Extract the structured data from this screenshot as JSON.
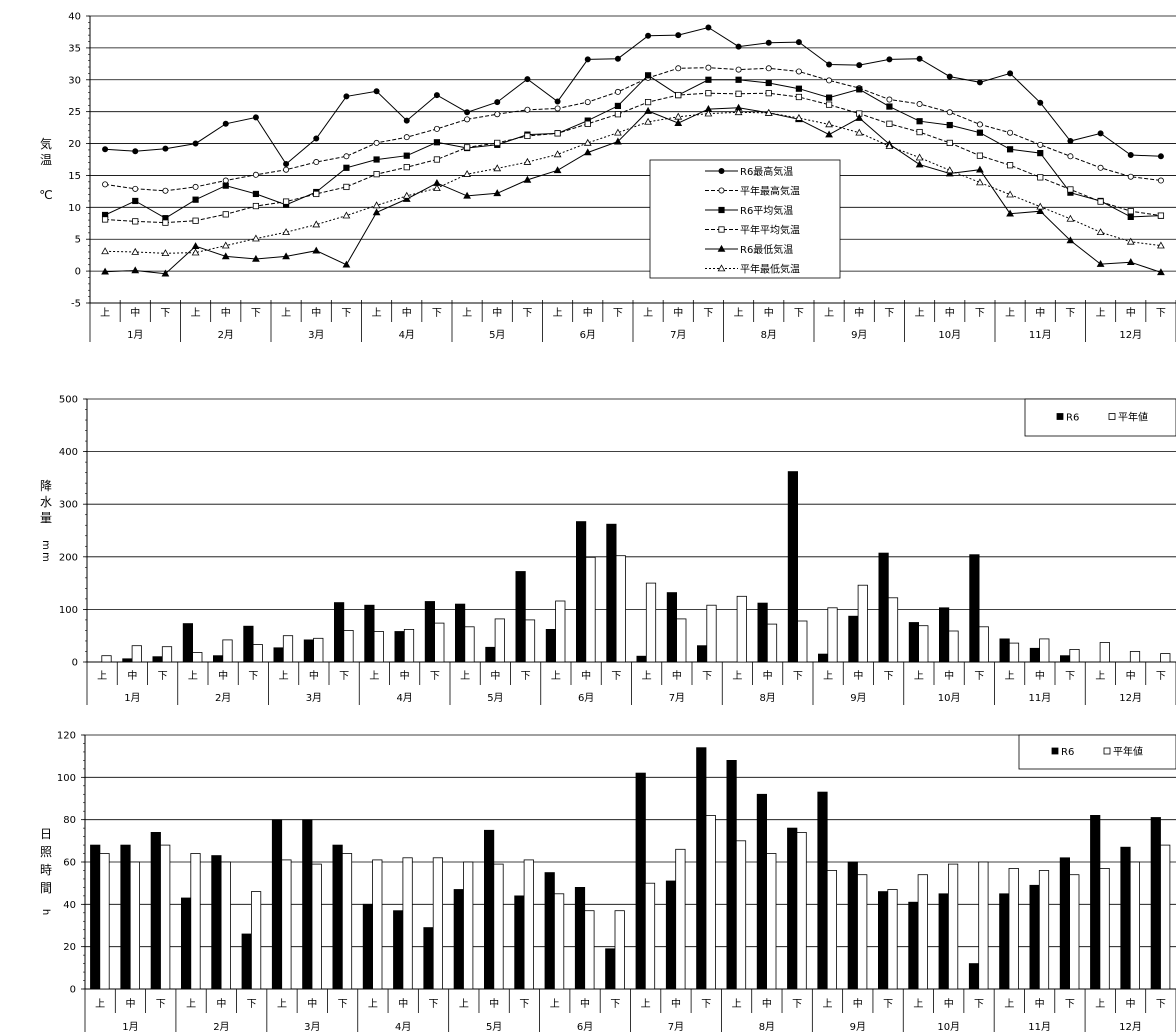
{
  "x_axis": {
    "dekads": [
      "上",
      "中",
      "下"
    ],
    "months": [
      "1月",
      "2月",
      "3月",
      "4月",
      "5月",
      "6月",
      "7月",
      "8月",
      "9月",
      "10月",
      "11月",
      "12月"
    ]
  },
  "chart_data": [
    {
      "type": "line",
      "title": "",
      "ylabel_chars": [
        "気",
        "温"
      ],
      "yunit": "℃",
      "ylim": [
        -5,
        40
      ],
      "yticks": [
        -5,
        0,
        5,
        10,
        15,
        20,
        25,
        30,
        35,
        40
      ],
      "grid": true,
      "legend_position": "center-right",
      "series": [
        {
          "name": "R6最高気温",
          "marker": "filled-circle",
          "dash": "solid",
          "values": [
            19.1,
            18.8,
            19.2,
            20.0,
            23.1,
            24.1,
            16.8,
            20.8,
            27.4,
            28.2,
            23.6,
            27.6,
            24.9,
            26.5,
            30.1,
            26.6,
            33.2,
            33.3,
            36.9,
            37.0,
            38.2,
            35.2,
            35.8,
            35.9,
            32.4,
            32.3,
            33.2,
            33.3,
            30.5,
            29.6,
            31.0,
            26.4,
            20.4,
            21.6,
            18.2,
            18.0
          ]
        },
        {
          "name": "平年最高気温",
          "marker": "open-circle",
          "dash": "dashed",
          "values": [
            13.6,
            12.9,
            12.6,
            13.2,
            14.2,
            15.1,
            15.9,
            17.1,
            18.0,
            20.1,
            21.0,
            22.3,
            23.8,
            24.6,
            25.3,
            25.5,
            26.5,
            28.1,
            30.3,
            31.8,
            31.9,
            31.6,
            31.8,
            31.3,
            29.9,
            28.7,
            26.9,
            26.2,
            24.9,
            23.0,
            21.7,
            19.8,
            18.0,
            16.2,
            14.8,
            14.2
          ]
        },
        {
          "name": "R6平均気温",
          "marker": "filled-square",
          "dash": "solid",
          "values": [
            8.8,
            11.0,
            8.3,
            11.2,
            13.4,
            12.1,
            10.4,
            12.4,
            16.2,
            17.5,
            18.1,
            20.2,
            19.3,
            19.8,
            21.4,
            21.6,
            23.6,
            25.9,
            30.7,
            27.6,
            30.0,
            30.0,
            29.5,
            28.6,
            27.2,
            28.5,
            25.8,
            23.5,
            22.9,
            21.7,
            19.1,
            18.5,
            12.3,
            11.0,
            8.5,
            8.7
          ]
        },
        {
          "name": "平年平均気温",
          "marker": "open-square",
          "dash": "dashed",
          "values": [
            8.1,
            7.8,
            7.6,
            7.9,
            8.9,
            10.2,
            10.9,
            12.1,
            13.2,
            15.2,
            16.3,
            17.5,
            19.4,
            20.1,
            21.2,
            21.6,
            23.1,
            24.6,
            26.5,
            27.6,
            27.9,
            27.8,
            27.9,
            27.3,
            26.1,
            24.7,
            23.1,
            21.8,
            20.1,
            18.1,
            16.6,
            14.7,
            12.8,
            10.9,
            9.4,
            8.7
          ]
        },
        {
          "name": "R6最低気温",
          "marker": "filled-triangle",
          "dash": "solid",
          "values": [
            -0.1,
            0.1,
            -0.4,
            3.9,
            2.3,
            1.9,
            2.3,
            3.2,
            1.0,
            9.2,
            11.3,
            13.8,
            11.8,
            12.2,
            14.3,
            15.8,
            18.6,
            20.3,
            25.1,
            23.2,
            25.4,
            25.6,
            24.8,
            23.8,
            21.4,
            24.0,
            19.9,
            16.7,
            15.3,
            15.9,
            9.0,
            9.4,
            4.8,
            1.1,
            1.4,
            -0.2
          ]
        },
        {
          "name": "平年最低気温",
          "marker": "open-triangle",
          "dash": "dotted",
          "values": [
            3.1,
            3.0,
            2.8,
            2.9,
            4.0,
            5.1,
            6.1,
            7.3,
            8.7,
            10.3,
            11.8,
            13.0,
            15.2,
            16.1,
            17.1,
            18.3,
            20.1,
            21.7,
            23.4,
            24.2,
            24.7,
            24.9,
            24.8,
            24.0,
            23.0,
            21.7,
            19.6,
            17.8,
            15.8,
            13.9,
            12.0,
            10.1,
            8.2,
            6.1,
            4.6,
            4.0
          ]
        }
      ]
    },
    {
      "type": "bar",
      "title": "",
      "ylabel_chars": [
        "降",
        "水",
        "量"
      ],
      "yunit_chars": [
        "m",
        "m"
      ],
      "ylim": [
        0,
        500
      ],
      "yticks": [
        0,
        100,
        200,
        300,
        400,
        500
      ],
      "grid": true,
      "legend_position": "top-right",
      "series": [
        {
          "name": "R6",
          "fill": "#000000",
          "values": [
            0,
            6,
            10,
            73,
            12,
            68,
            27,
            42,
            113,
            108,
            58,
            115,
            110,
            28,
            172,
            62,
            267,
            262,
            11,
            132,
            31,
            0,
            112,
            362,
            15,
            87,
            207,
            75,
            103,
            204,
            44,
            26,
            12,
            0,
            0,
            0
          ]
        },
        {
          "name": "平年値",
          "fill": "#ffffff",
          "values": [
            12,
            31,
            29,
            18,
            42,
            33,
            50,
            45,
            60,
            58,
            62,
            74,
            67,
            82,
            80,
            116,
            199,
            202,
            150,
            82,
            108,
            125,
            72,
            78,
            103,
            146,
            122,
            69,
            59,
            67,
            36,
            44,
            24,
            37,
            20,
            16
          ]
        }
      ]
    },
    {
      "type": "bar",
      "title": "",
      "ylabel_chars": [
        "日",
        "照",
        "時",
        "間"
      ],
      "yunit_chars": [
        "h"
      ],
      "ylim": [
        0,
        120
      ],
      "yticks": [
        0,
        20,
        40,
        60,
        80,
        100,
        120
      ],
      "grid": true,
      "legend_position": "top-right",
      "series": [
        {
          "name": "R6",
          "fill": "#000000",
          "values": [
            68,
            68,
            74,
            43,
            63,
            26,
            80,
            80,
            68,
            40,
            37,
            29,
            47,
            75,
            44,
            55,
            48,
            19,
            102,
            51,
            114,
            108,
            92,
            76,
            93,
            60,
            46,
            41,
            45,
            12,
            45,
            49,
            62,
            82,
            67,
            81
          ]
        },
        {
          "name": "平年値",
          "fill": "#ffffff",
          "values": [
            64,
            60,
            68,
            64,
            60,
            46,
            61,
            59,
            64,
            61,
            62,
            62,
            60,
            59,
            61,
            45,
            37,
            37,
            50,
            66,
            82,
            70,
            64,
            74,
            56,
            54,
            47,
            54,
            59,
            60,
            57,
            56,
            54,
            57,
            60,
            68
          ]
        }
      ]
    }
  ]
}
